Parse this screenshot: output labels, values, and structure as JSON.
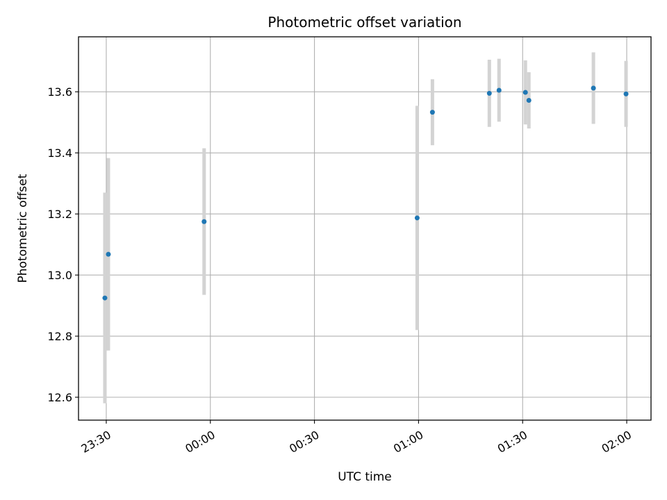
{
  "chart_data": {
    "type": "scatter",
    "title": "Photometric offset variation",
    "xlabel": "UTC time",
    "ylabel": "Photometric offset",
    "x_tick_labels": [
      "23:30",
      "00:00",
      "00:30",
      "01:00",
      "01:30",
      "02:00"
    ],
    "y_tick_labels": [
      "12.6",
      "12.8",
      "13.0",
      "13.2",
      "13.4",
      "13.6"
    ],
    "xlim": [
      "23:22",
      "02:07"
    ],
    "ylim": [
      12.525,
      13.78
    ],
    "grid": true,
    "series": [
      {
        "marker_color": "#1f77b4",
        "errorbar_color": "#d3d3d3",
        "points": [
          {
            "x": "23:29:36",
            "y": 12.925,
            "yerr": 0.345
          },
          {
            "x": "23:30:36",
            "y": 13.068,
            "yerr": 0.315
          },
          {
            "x": "23:58:12",
            "y": 13.175,
            "yerr": 0.24
          },
          {
            "x": "00:59:36",
            "y": 13.187,
            "yerr": 0.367
          },
          {
            "x": "01:04:00",
            "y": 13.533,
            "yerr": 0.108
          },
          {
            "x": "01:20:24",
            "y": 13.595,
            "yerr": 0.11
          },
          {
            "x": "01:23:12",
            "y": 13.605,
            "yerr": 0.103
          },
          {
            "x": "01:30:48",
            "y": 13.598,
            "yerr": 0.105
          },
          {
            "x": "01:31:48",
            "y": 13.572,
            "yerr": 0.092
          },
          {
            "x": "01:50:24",
            "y": 13.612,
            "yerr": 0.117
          },
          {
            "x": "01:59:48",
            "y": 13.593,
            "yerr": 0.108
          }
        ]
      }
    ]
  }
}
